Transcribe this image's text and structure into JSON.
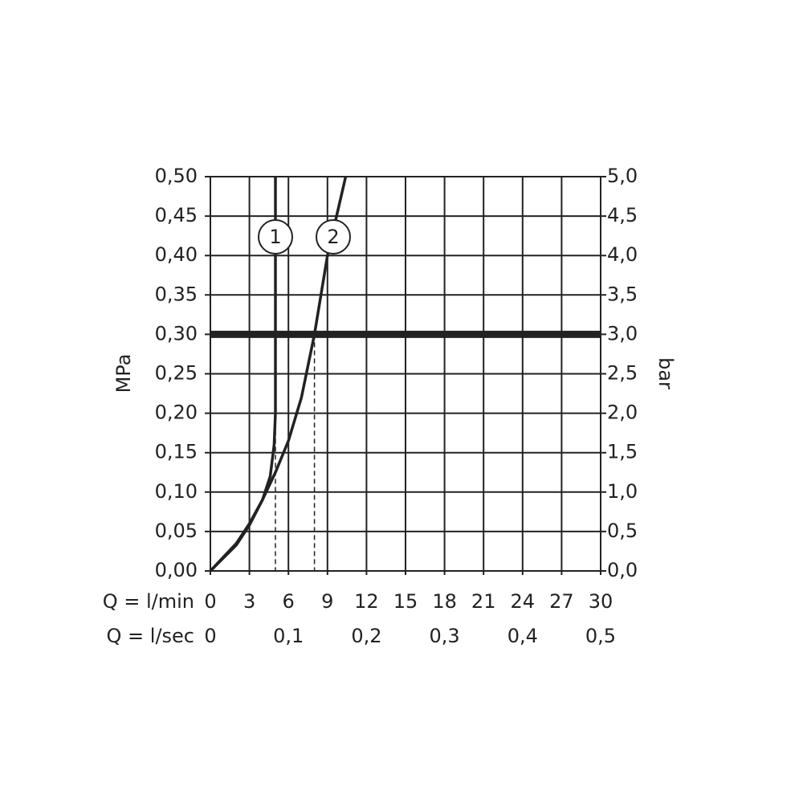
{
  "chart_data": {
    "type": "line",
    "xlabel": "Q = l/min",
    "x2label": "Q = l/sec",
    "ylabel": "MPa",
    "y2label": "bar",
    "xlim": [
      0,
      30
    ],
    "xticks": [
      0,
      3,
      6,
      9,
      12,
      15,
      18,
      21,
      24,
      27,
      30
    ],
    "x2lim": [
      0,
      0.5
    ],
    "x2ticks": [
      0,
      {
        "value": 0.1,
        "label": "0,1"
      },
      {
        "value": 0.2,
        "label": "0,2"
      },
      {
        "value": 0.3,
        "label": "0,3"
      },
      {
        "value": 0.4,
        "label": "0,4"
      },
      {
        "value": 0.5,
        "label": "0,5"
      }
    ],
    "ylim": [
      0,
      0.5
    ],
    "yticks": [
      {
        "value": 0,
        "label": "0,00"
      },
      {
        "value": 0.05,
        "label": "0,05"
      },
      {
        "value": 0.1,
        "label": "0,10"
      },
      {
        "value": 0.15,
        "label": "0,15"
      },
      {
        "value": 0.2,
        "label": "0,20"
      },
      {
        "value": 0.25,
        "label": "0,25"
      },
      {
        "value": 0.3,
        "label": "0,30"
      },
      {
        "value": 0.35,
        "label": "0,35"
      },
      {
        "value": 0.4,
        "label": "0,40"
      },
      {
        "value": 0.45,
        "label": "0,45"
      },
      {
        "value": 0.5,
        "label": "0,50"
      }
    ],
    "y2lim": [
      0,
      5
    ],
    "y2ticks": [
      {
        "value": 0,
        "label": "0,0"
      },
      {
        "value": 0.5,
        "label": "0,5"
      },
      {
        "value": 1,
        "label": "1,0"
      },
      {
        "value": 1.5,
        "label": "1,5"
      },
      {
        "value": 2,
        "label": "2,0"
      },
      {
        "value": 2.5,
        "label": "2,5"
      },
      {
        "value": 3,
        "label": "3,0"
      },
      {
        "value": 3.5,
        "label": "3,5"
      },
      {
        "value": 4,
        "label": "4,0"
      },
      {
        "value": 4.5,
        "label": "4,5"
      },
      {
        "value": 5,
        "label": "5,0"
      }
    ],
    "grid": true,
    "color": "#222222",
    "reference_line": 0.3,
    "markers": [
      {
        "x": 5,
        "y": 0.3
      },
      {
        "x": 8,
        "y": 0.3
      }
    ],
    "series": [
      {
        "name": "1",
        "x": [
          0,
          2,
          3,
          4,
          4.6,
          4.9,
          5,
          5
        ],
        "values": [
          0,
          0.035,
          0.06,
          0.09,
          0.12,
          0.16,
          0.2,
          0.5
        ]
      },
      {
        "name": "2",
        "x": [
          0,
          2,
          3,
          4,
          5,
          6,
          7,
          8,
          9,
          10.4
        ],
        "values": [
          0,
          0.033,
          0.058,
          0.09,
          0.125,
          0.165,
          0.22,
          0.3,
          0.4,
          0.5
        ]
      }
    ]
  }
}
